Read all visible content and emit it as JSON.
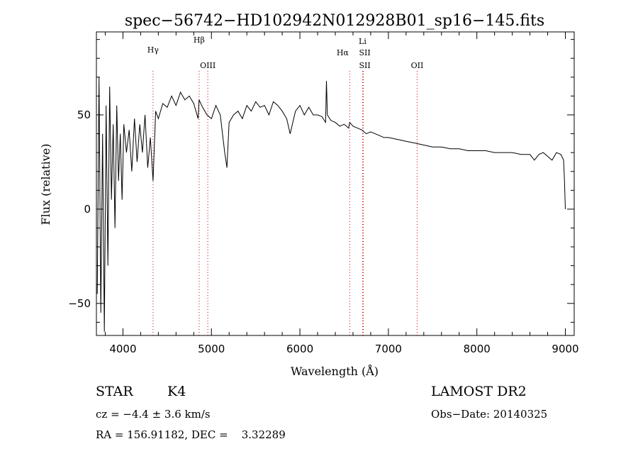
{
  "chart_data": {
    "type": "line",
    "title": "spec−56742−HD102942N012928B01_sp16−145.fits",
    "xlabel": "Wavelength (Å)",
    "ylabel": "Flux (relative)",
    "xlim": [
      3700,
      9100
    ],
    "ylim": [
      -67,
      94
    ],
    "x_ticks": [
      4000,
      5000,
      6000,
      7000,
      8000,
      9000
    ],
    "x_tick_labels": [
      "4000",
      "5000",
      "6000",
      "7000",
      "8000",
      "9000"
    ],
    "y_ticks": [
      -50,
      0,
      50
    ],
    "y_tick_labels": [
      "−50",
      "0",
      "50"
    ],
    "series": [
      {
        "x": [
          3710,
          3730,
          3750,
          3770,
          3790,
          3810,
          3830,
          3850,
          3870,
          3890,
          3910,
          3930,
          3950,
          3970,
          3990,
          4010,
          4040,
          4070,
          4100,
          4130,
          4160,
          4190,
          4220,
          4250,
          4280,
          4310,
          4340,
          4370,
          4400,
          4450,
          4500,
          4550,
          4600,
          4650,
          4700,
          4750,
          4800,
          4850,
          4860,
          4900,
          4950,
          5000,
          5050,
          5100,
          5150,
          5175,
          5200,
          5250,
          5300,
          5350,
          5400,
          5450,
          5500,
          5550,
          5600,
          5650,
          5700,
          5750,
          5800,
          5850,
          5890,
          5950,
          6000,
          6050,
          6100,
          6150,
          6200,
          6250,
          6290,
          6300,
          6310,
          6350,
          6400,
          6450,
          6500,
          6550,
          6563,
          6600,
          6650,
          6700,
          6750,
          6800,
          6850,
          6900,
          6950,
          7000,
          7100,
          7200,
          7300,
          7400,
          7500,
          7600,
          7700,
          7800,
          7900,
          8000,
          8100,
          8200,
          8300,
          8400,
          8500,
          8600,
          8650,
          8700,
          8750,
          8800,
          8850,
          8900,
          8950,
          8980,
          8990,
          9000
        ],
        "y": [
          -45,
          70,
          -55,
          40,
          -65,
          55,
          -30,
          65,
          5,
          45,
          -10,
          55,
          15,
          40,
          5,
          45,
          30,
          42,
          20,
          48,
          25,
          45,
          30,
          50,
          22,
          38,
          15,
          52,
          48,
          56,
          54,
          60,
          55,
          62,
          58,
          60,
          56,
          48,
          58,
          54,
          50,
          48,
          55,
          50,
          30,
          22,
          46,
          50,
          52,
          48,
          55,
          52,
          57,
          54,
          55,
          50,
          57,
          55,
          52,
          48,
          40,
          52,
          55,
          50,
          54,
          50,
          50,
          49,
          46,
          68,
          50,
          47,
          46,
          44,
          45,
          43,
          46,
          44,
          43,
          42,
          40,
          41,
          40,
          39,
          38,
          38,
          37,
          36,
          35,
          34,
          33,
          33,
          32,
          32,
          31,
          31,
          31,
          30,
          30,
          30,
          29,
          29,
          26,
          29,
          30,
          28,
          26,
          30,
          29,
          26,
          15,
          0
        ]
      }
    ],
    "lines": [
      {
        "x": 4340,
        "color": "#cc0000",
        "labels": [
          "Hγ"
        ]
      },
      {
        "x": 4861,
        "color": "#cc0000",
        "labels": [
          "Hβ"
        ]
      },
      {
        "x": 4959,
        "color": "#cc0000",
        "labels": [
          "OIII"
        ]
      },
      {
        "x": 6563,
        "color": "#cc0000",
        "labels": [
          "Hα"
        ]
      },
      {
        "x": 6708,
        "color": "#cc0000",
        "labels": [
          "Li"
        ]
      },
      {
        "x": 6717,
        "color": "#cc0000",
        "labels": [
          "SII",
          "SII"
        ]
      },
      {
        "x": 7325,
        "color": "#cc0000",
        "labels": [
          "OII"
        ]
      }
    ]
  },
  "info": {
    "object_class": "STAR",
    "subclass": "K4",
    "survey": "LAMOST DR2",
    "cz": "cz = −4.4 ± 3.6 km/s",
    "obs_date": "Obs−Date: 20140325",
    "coords": "RA = 156.91182, DEC =    3.32289"
  }
}
